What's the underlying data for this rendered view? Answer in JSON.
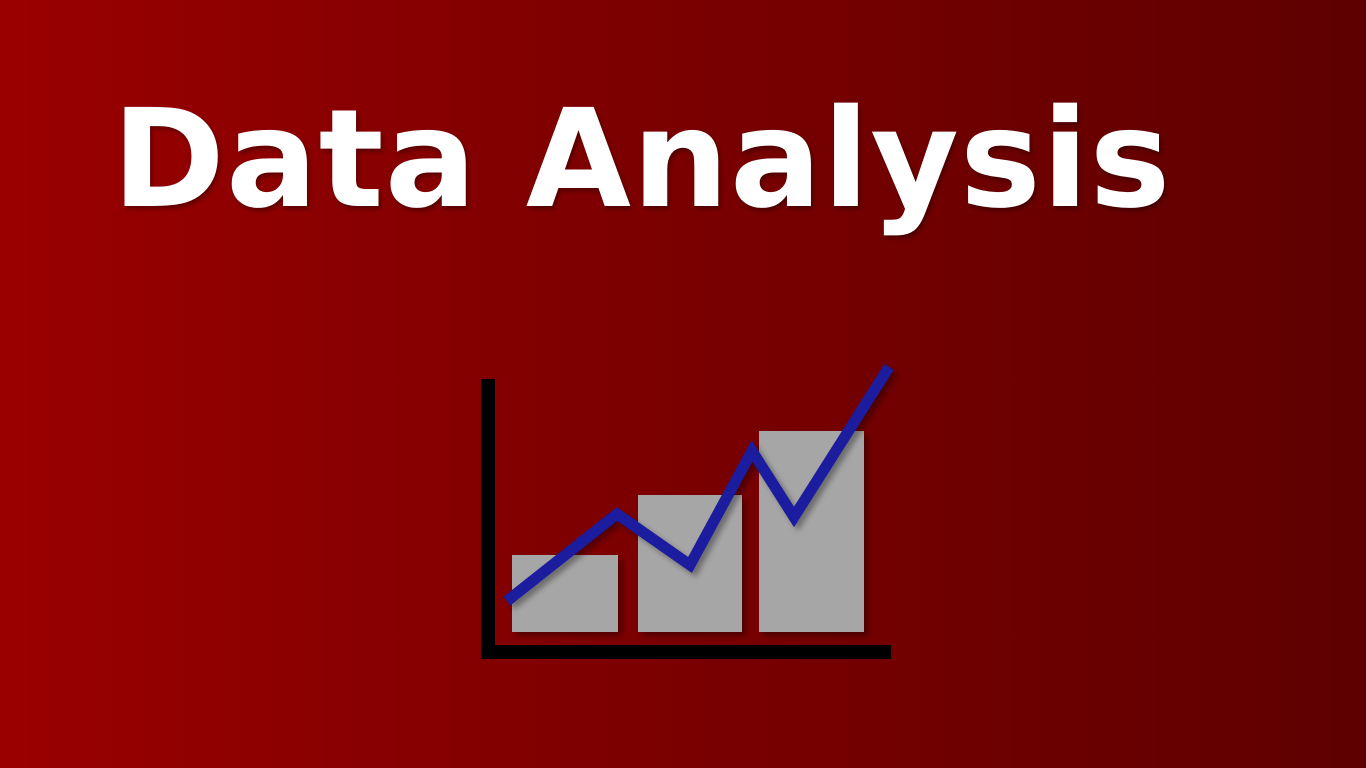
{
  "slide": {
    "title": "Data Analysis",
    "background_colors": [
      "#9a0000",
      "#5e0000"
    ]
  },
  "icon": {
    "name": "bar-line-chart-icon",
    "colors": {
      "axes": "#000000",
      "bars": "#a6a6a6",
      "line": "#1a1a9e"
    }
  }
}
